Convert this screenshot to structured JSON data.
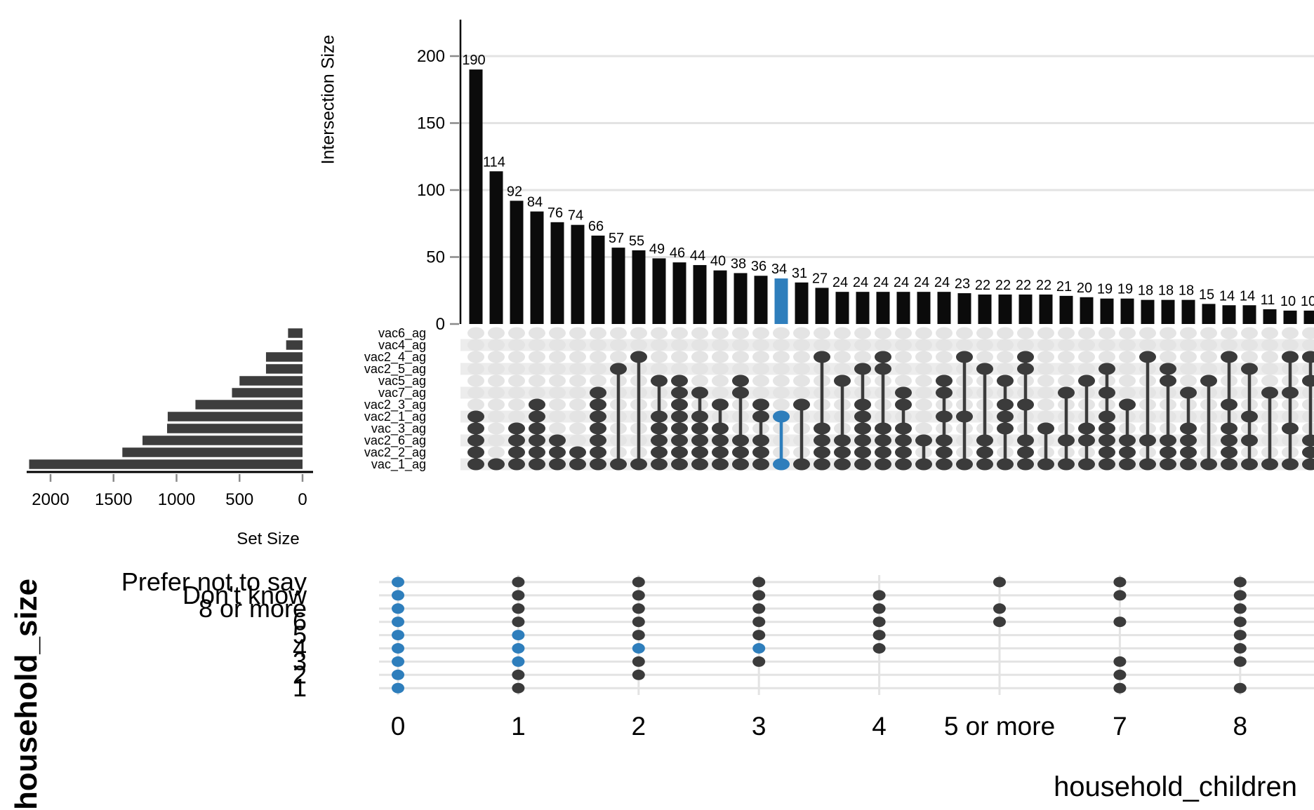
{
  "labels": {
    "intersection_size_axis": "Intersection Size",
    "set_size_axis": "Set Size",
    "household_children_axis": "household_children",
    "household_size_axis": "household_size"
  },
  "colors": {
    "bar": "#0b0b0b",
    "highlight": "#2e7ebc",
    "dark_dot": "#3b3b3b",
    "set_bar": "#3d3d3d",
    "light_dot": "#e4e4e4",
    "band": "#ececec",
    "gridline": "#e3e3e3",
    "tick_dash": "#8a8a8a",
    "axis_line": "#000000"
  },
  "chart_data": {
    "type": "upset",
    "intersection_chart": {
      "ylabel": "Intersection Size",
      "yticks": [
        0,
        50,
        100,
        150,
        200
      ],
      "ylim": [
        0,
        210
      ],
      "grid": true,
      "bar_values": [
        190,
        114,
        92,
        84,
        76,
        74,
        66,
        57,
        55,
        49,
        46,
        44,
        40,
        38,
        36,
        34,
        31,
        27,
        24,
        24,
        24,
        24,
        24,
        24,
        23,
        22,
        22,
        22,
        22,
        21,
        20,
        19,
        19,
        18,
        18,
        18,
        15,
        14,
        14,
        11,
        10,
        10
      ],
      "highlighted_bar_index": 15,
      "highlighted_bar_value": 34
    },
    "matrix": {
      "sets_top_to_bottom": [
        "vac6_ag",
        "vac4_ag",
        "vac2_4_ag",
        "vac2_5_ag",
        "vac5_ag",
        "vac7_ag",
        "vac2_3_ag",
        "vac2_1_ag",
        "vac_3_ag",
        "vac2_6_ag",
        "vac2_2_ag",
        "vac_1_ag"
      ],
      "memberships_row_indices": [
        [
          7,
          8,
          9,
          10,
          11
        ],
        [
          11
        ],
        [
          8,
          9,
          10,
          11
        ],
        [
          6,
          7,
          8,
          9,
          10,
          11
        ],
        [
          9,
          10,
          11
        ],
        [
          10,
          11
        ],
        [
          5,
          6,
          7,
          8,
          9,
          10,
          11
        ],
        [
          3,
          11
        ],
        [
          2,
          11
        ],
        [
          4,
          7,
          8,
          9,
          10,
          11
        ],
        [
          4,
          5,
          6,
          7,
          8,
          9,
          10,
          11
        ],
        [
          5,
          7,
          8,
          9,
          10,
          11
        ],
        [
          6,
          8,
          9,
          10,
          11
        ],
        [
          4,
          5,
          9,
          10,
          11
        ],
        [
          6,
          7,
          9,
          10,
          11
        ],
        [
          7,
          11
        ],
        [
          6,
          11
        ],
        [
          2,
          8,
          9,
          10,
          11
        ],
        [
          4,
          9,
          10,
          11
        ],
        [
          3,
          6,
          7,
          8,
          9,
          10,
          11
        ],
        [
          2,
          3,
          8,
          9,
          10,
          11
        ],
        [
          5,
          6,
          8,
          9,
          10,
          11
        ],
        [
          9,
          11
        ],
        [
          4,
          5,
          7,
          9,
          10,
          11
        ],
        [
          2,
          7,
          11
        ],
        [
          3,
          9,
          10,
          11
        ],
        [
          4,
          6,
          7,
          8,
          11
        ],
        [
          2,
          3,
          6,
          9,
          10,
          11
        ],
        [
          8,
          11
        ],
        [
          5,
          9,
          11
        ],
        [
          4,
          8,
          9,
          11
        ],
        [
          3,
          5,
          7,
          8,
          9,
          10,
          11
        ],
        [
          6,
          9,
          10,
          11
        ],
        [
          2,
          9,
          11
        ],
        [
          3,
          4,
          9,
          10,
          11
        ],
        [
          5,
          8,
          9,
          10,
          11
        ],
        [
          4,
          11
        ],
        [
          2,
          6,
          8,
          9,
          10,
          11
        ],
        [
          3,
          7,
          9,
          11
        ],
        [
          5,
          11
        ],
        [
          2,
          5,
          8,
          11
        ],
        [
          2,
          4,
          9,
          10,
          11
        ]
      ],
      "highlighted_column_index": 15
    },
    "set_size_chart": {
      "xlabel": "Set Size",
      "xticks": [
        2000,
        1500,
        1000,
        500,
        0
      ],
      "sets": [
        "vac6_ag",
        "vac4_ag",
        "vac2_4_ag",
        "vac2_5_ag",
        "vac5_ag",
        "vac7_ag",
        "vac2_3_ag",
        "vac2_1_ag",
        "vac_3_ag",
        "vac2_6_ag",
        "vac2_2_ag",
        "vac_1_ag"
      ],
      "values": [
        115,
        130,
        290,
        290,
        500,
        560,
        850,
        1070,
        1075,
        1270,
        1430,
        2170
      ]
    },
    "bottom_scatter": {
      "type": "scatter",
      "xlabel": "household_children",
      "ylabel": "household_size",
      "x_categories": [
        "0",
        "1",
        "2",
        "3",
        "4",
        "5 or more",
        "7",
        "8"
      ],
      "y_categories_top_to_bottom": [
        "Prefer not to say",
        "Don't know",
        "8 or more",
        "6",
        "5",
        "4",
        "3",
        "2",
        "1"
      ],
      "columns": [
        {
          "x": "0",
          "rows": [
            0,
            1,
            2,
            3,
            4,
            5,
            6,
            7,
            8
          ],
          "blue_rows": [
            0,
            1,
            2,
            3,
            4,
            5,
            6,
            7,
            8
          ]
        },
        {
          "x": "1",
          "rows": [
            0,
            1,
            2,
            3,
            4,
            5,
            6,
            7,
            8
          ],
          "blue_rows": [
            4,
            5,
            6
          ]
        },
        {
          "x": "2",
          "rows": [
            0,
            1,
            2,
            3,
            4,
            5,
            6,
            7
          ],
          "blue_rows": [
            5
          ]
        },
        {
          "x": "3",
          "rows": [
            0,
            1,
            2,
            3,
            4,
            5,
            6
          ],
          "blue_rows": [
            5
          ]
        },
        {
          "x": "4",
          "rows": [
            1,
            2,
            3,
            4,
            5
          ],
          "blue_rows": []
        },
        {
          "x": "5 or more",
          "rows": [
            0,
            2,
            3
          ],
          "blue_rows": []
        },
        {
          "x": "7",
          "rows": [
            0,
            1,
            3,
            6,
            7,
            8
          ],
          "blue_rows": []
        },
        {
          "x": "8",
          "rows": [
            0,
            1,
            2,
            3,
            4,
            5,
            6,
            8
          ],
          "blue_rows": []
        }
      ]
    }
  }
}
